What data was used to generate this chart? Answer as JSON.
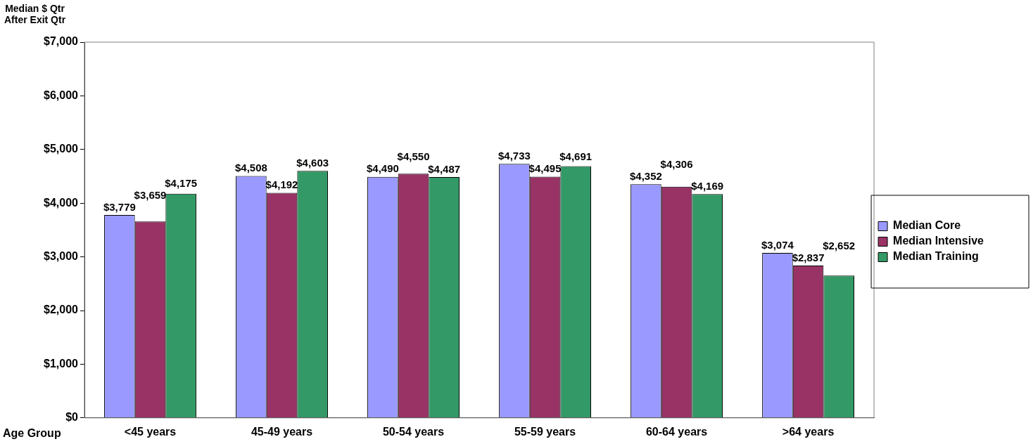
{
  "chart_data": {
    "type": "bar",
    "ylabel": "Median $  Qtr\nAfter Exit Qtr",
    "xlabel": "Age Group",
    "categories": [
      "<45 years",
      "45-49 years",
      "50-54 years",
      "55-59 years",
      "60-64 years",
      ">64 years"
    ],
    "series": [
      {
        "name": "Median Core",
        "color": "#9999ff",
        "values": [
          3779,
          4508,
          4490,
          4733,
          4352,
          3074
        ],
        "value_labels": [
          "$3,779",
          "$4,508",
          "$4,490",
          "$4,733",
          "$4,352",
          "$3,074"
        ]
      },
      {
        "name": "Median Intensive",
        "color": "#993366",
        "values": [
          3659,
          4192,
          4550,
          4495,
          4306,
          2837
        ],
        "value_labels": [
          "$3,659",
          "$4,192",
          "$4,550",
          "$4,495",
          "$4,306",
          "$2,837"
        ]
      },
      {
        "name": "Median Training",
        "color": "#339966",
        "values": [
          4175,
          4603,
          4487,
          4691,
          4169,
          2652
        ],
        "value_labels": [
          "$4,175",
          "$4,603",
          "$4,487",
          "$4,691",
          "$4,169",
          "$2,652"
        ]
      }
    ],
    "ylim": [
      0,
      7000
    ],
    "yticks": [
      {
        "value": 0,
        "label": "$0"
      },
      {
        "value": 1000,
        "label": "$1,000"
      },
      {
        "value": 2000,
        "label": "$2,000"
      },
      {
        "value": 3000,
        "label": "$3,000"
      },
      {
        "value": 4000,
        "label": "$4,000"
      },
      {
        "value": 5000,
        "label": "$5,000"
      },
      {
        "value": 6000,
        "label": "$6,000"
      },
      {
        "value": 7000,
        "label": "$7,000"
      }
    ],
    "grid": false,
    "legend": "right"
  }
}
